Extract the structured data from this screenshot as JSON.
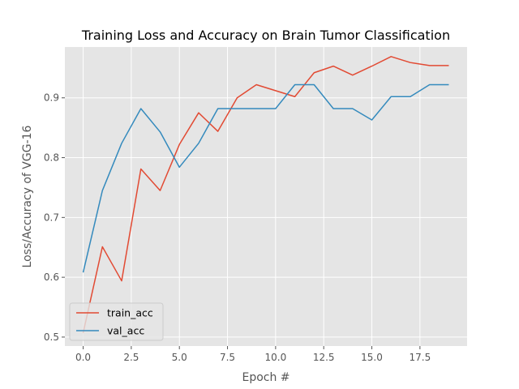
{
  "chart_data": {
    "type": "line",
    "title": "Training Loss and Accuracy on Brain Tumor Classification",
    "xlabel": "Epoch #",
    "ylabel": "Loss/Accuracy of VGG-16",
    "xlim": [
      -0.95,
      19.95
    ],
    "ylim": [
      0.485,
      0.985
    ],
    "xticks": [
      0.0,
      2.5,
      5.0,
      7.5,
      10.0,
      12.5,
      15.0,
      17.5
    ],
    "xtick_labels": [
      "0.0",
      "2.5",
      "5.0",
      "7.5",
      "10.0",
      "12.5",
      "15.0",
      "17.5"
    ],
    "yticks": [
      0.5,
      0.6,
      0.7,
      0.8,
      0.9
    ],
    "ytick_labels": [
      "0.5",
      "0.6",
      "0.7",
      "0.8",
      "0.9"
    ],
    "grid": true,
    "legend_position": "lower-left",
    "background": "#e5e5e5",
    "x": [
      0,
      1,
      2,
      3,
      4,
      5,
      6,
      7,
      8,
      9,
      10,
      11,
      12,
      13,
      14,
      15,
      16,
      17,
      18,
      19
    ],
    "series": [
      {
        "name": "train_acc",
        "color": "#e24a33",
        "values": [
          0.507,
          0.651,
          0.594,
          0.781,
          0.745,
          0.822,
          0.875,
          0.844,
          0.9,
          0.922,
          0.912,
          0.902,
          0.942,
          0.953,
          0.938,
          0.953,
          0.969,
          0.959,
          0.954,
          0.954
        ]
      },
      {
        "name": "val_acc",
        "color": "#348abd",
        "values": [
          0.608,
          0.745,
          0.824,
          0.882,
          0.843,
          0.784,
          0.824,
          0.882,
          0.882,
          0.882,
          0.882,
          0.922,
          0.922,
          0.882,
          0.882,
          0.863,
          0.902,
          0.902,
          0.922,
          0.922
        ]
      }
    ]
  }
}
